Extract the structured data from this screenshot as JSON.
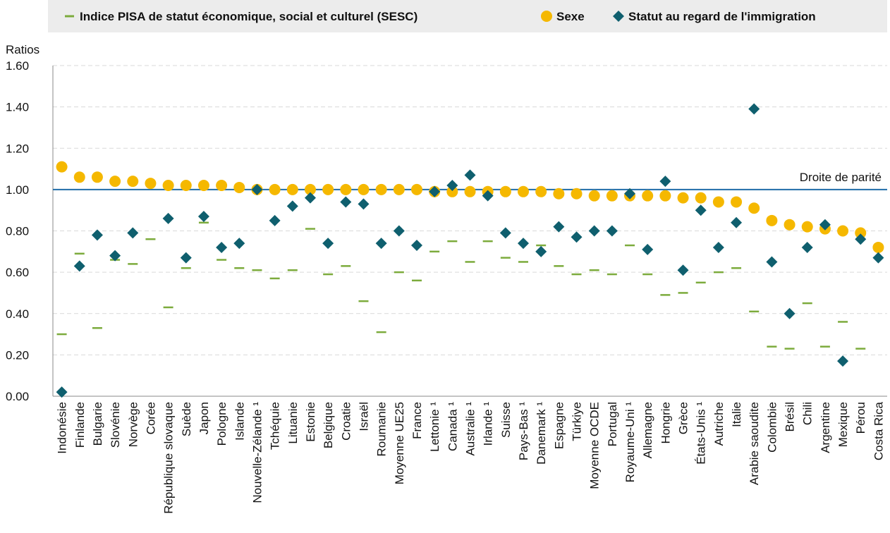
{
  "chart_data": {
    "type": "scatter",
    "y_label": "Ratios",
    "annotation": "Droite de parité",
    "parity_line": 1,
    "categories": [
      "Indonésie",
      "Finlande",
      "Bulgarie",
      "Slovénie",
      "Norvège",
      "Corée",
      "République slovaque",
      "Suède",
      "Japon",
      "Pologne",
      "Islande",
      "Nouvelle-Zélande ¹",
      "Tchéquie",
      "Lituanie",
      "Estonie",
      "Belgique",
      "Croatie",
      "Israël",
      "Roumanie",
      "Moyenne UE25",
      "France",
      "Lettonie ¹",
      "Canada ¹",
      "Australie ¹",
      "Irlande ¹",
      "Suisse",
      "Pays-Bas ¹",
      "Danemark ¹",
      "Espagne",
      "Türkiye",
      "Moyenne OCDE",
      "Portugal",
      "Royaume-Uni ¹",
      "Allemagne",
      "Hongrie",
      "Grèce",
      "États-Unis ¹",
      "Autriche",
      "Italie",
      "Arabie saoudite",
      "Colombie",
      "Brésil",
      "Chili",
      "Argentine",
      "Mexique",
      "Pérou",
      "Costa Rica"
    ],
    "series": [
      {
        "name": "Indice PISA de statut économique, social et culturel (SESC)",
        "marker": "dash",
        "color": "#7cab3c",
        "values": [
          0.3,
          0.69,
          0.33,
          0.66,
          0.64,
          0.76,
          0.43,
          0.62,
          0.84,
          0.66,
          0.62,
          0.61,
          0.57,
          0.61,
          0.81,
          0.59,
          0.63,
          0.46,
          0.31,
          0.6,
          0.56,
          0.7,
          0.75,
          0.65,
          0.75,
          0.67,
          0.65,
          0.73,
          0.63,
          0.59,
          0.61,
          0.59,
          0.73,
          0.59,
          0.49,
          0.5,
          0.55,
          0.6,
          0.62,
          0.41,
          0.24,
          0.23,
          0.45,
          0.24,
          0.36,
          0.23,
          null
        ]
      },
      {
        "name": "Sexe",
        "marker": "circle",
        "color": "#f5b800",
        "values": [
          1.11,
          1.06,
          1.06,
          1.04,
          1.04,
          1.03,
          1.02,
          1.02,
          1.02,
          1.02,
          1.01,
          1.0,
          1.0,
          1.0,
          1.0,
          1.0,
          1.0,
          1.0,
          1.0,
          1.0,
          1.0,
          0.99,
          0.99,
          0.99,
          0.99,
          0.99,
          0.99,
          0.99,
          0.98,
          0.98,
          0.97,
          0.97,
          0.97,
          0.97,
          0.97,
          0.96,
          0.96,
          0.94,
          0.94,
          0.91,
          0.85,
          0.83,
          0.82,
          0.81,
          0.8,
          0.79,
          0.72
        ]
      },
      {
        "name": "Statut au regard de l'immigration",
        "marker": "diamond",
        "color": "#0f5f6e",
        "values": [
          0.02,
          0.63,
          0.78,
          0.68,
          0.79,
          null,
          0.86,
          0.67,
          0.87,
          0.72,
          0.74,
          1.0,
          0.85,
          0.92,
          0.96,
          0.74,
          0.94,
          0.93,
          0.74,
          0.8,
          0.73,
          0.99,
          1.02,
          1.07,
          0.97,
          0.79,
          0.74,
          0.7,
          0.82,
          0.77,
          0.8,
          0.8,
          0.98,
          0.71,
          1.04,
          0.61,
          0.9,
          0.72,
          0.84,
          1.39,
          0.65,
          0.4,
          0.72,
          0.83,
          0.17,
          0.76,
          0.67
        ]
      }
    ],
    "ylim": [
      0,
      1.6
    ],
    "yticks": [
      {
        "value": 0,
        "label": "0.00"
      },
      {
        "value": 0.2,
        "label": "0.20"
      },
      {
        "value": 0.4,
        "label": "0.40"
      },
      {
        "value": 0.6,
        "label": "0.60"
      },
      {
        "value": 0.8,
        "label": "0.80"
      },
      {
        "value": 1,
        "label": "1.00"
      },
      {
        "value": 1.2,
        "label": "1.20"
      },
      {
        "value": 1.4,
        "label": "1.40"
      },
      {
        "value": 1.6,
        "label": "1.60"
      }
    ],
    "grid": true
  }
}
